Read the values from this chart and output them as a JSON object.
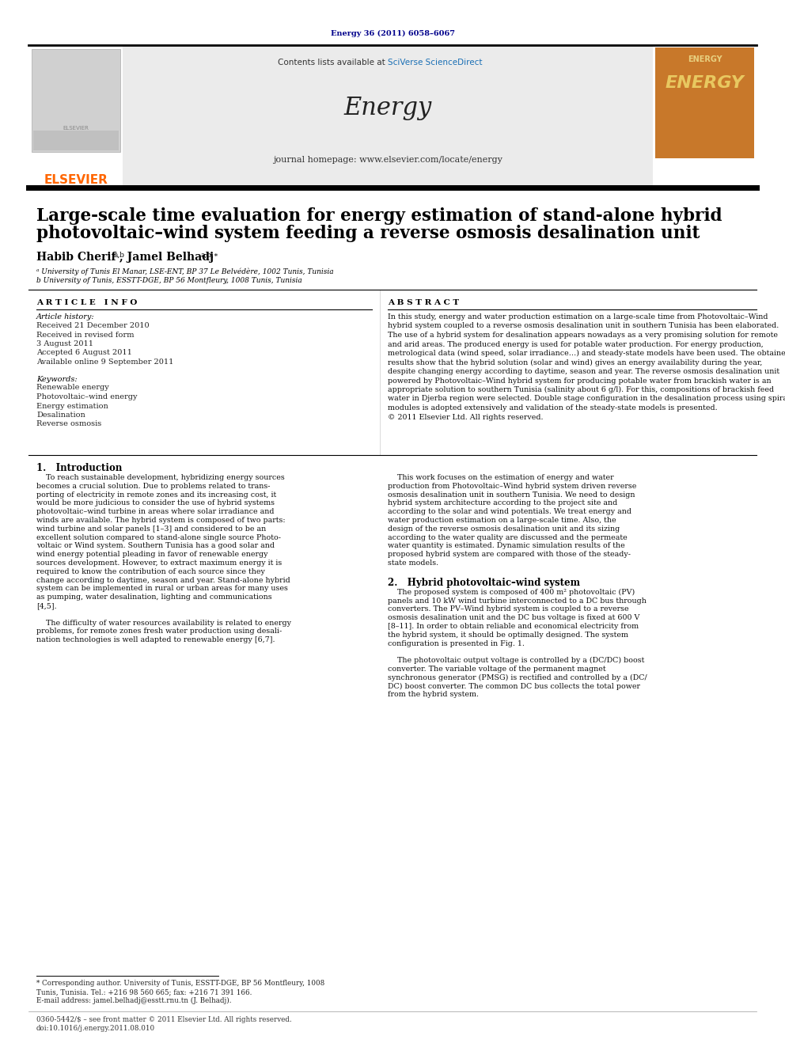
{
  "page_bg": "#ffffff",
  "header_citation": "Energy 36 (2011) 6058–6067",
  "header_citation_color": "#00008B",
  "journal_header_bg": "#e8e8e8",
  "journal_name": "Energy",
  "journal_url": "journal homepage: www.elsevier.com/locate/energy",
  "contents_text": "Contents lists available at ",
  "sciverse_text": "SciVerse ScienceDirect",
  "sciverse_color": "#1a6fb5",
  "elsevier_color": "#FF6600",
  "elsevier_text": "ELSEVIER",
  "article_title_line1": "Large-scale time evaluation for energy estimation of stand-alone hybrid",
  "article_title_line2": "photovoltaic–wind system feeding a reverse osmosis desalination unit",
  "author1": "Habib Cherif",
  "author1_sup": "a,b",
  "author2": ", Jamel Belhadj",
  "author2_sup": "a,b,∗",
  "affil1": "ᵃ University of Tunis El Manar, LSE-ENT, BP 37 Le Belvédère, 1002 Tunis, Tunisia",
  "affil2": "b University of Tunis, ESSTT-DGE, BP 56 Montfleury, 1008 Tunis, Tunisia",
  "article_info_title": "A R T I C L E   I N F O",
  "abstract_title": "A B S T R A C T",
  "article_history_title": "Article history:",
  "received1": "Received 21 December 2010",
  "received2": "Received in revised form",
  "date2": "3 August 2011",
  "accepted": "Accepted 6 August 2011",
  "available": "Available online 9 September 2011",
  "keywords_title": "Keywords:",
  "keywords": [
    "Renewable energy",
    "Photovoltaic–wind energy",
    "Energy estimation",
    "Desalination",
    "Reverse osmosis"
  ],
  "abstract_lines": [
    "In this study, energy and water production estimation on a large-scale time from Photovoltaic–Wind",
    "hybrid system coupled to a reverse osmosis desalination unit in southern Tunisia has been elaborated.",
    "The use of a hybrid system for desalination appears nowadays as a very promising solution for remote",
    "and arid areas. The produced energy is used for potable water production. For energy production,",
    "metrological data (wind speed, solar irradiance…) and steady-state models have been used. The obtained",
    "results show that the hybrid solution (solar and wind) gives an energy availability during the year,",
    "despite changing energy according to daytime, season and year. The reverse osmosis desalination unit",
    "powered by Photovoltaic–Wind hybrid system for producing potable water from brackish water is an",
    "appropriate solution to southern Tunisia (salinity about 6 g/l). For this, compositions of brackish feed",
    "water in Djerba region were selected. Double stage configuration in the desalination process using spiral",
    "modules is adopted extensively and validation of the steady-state models is presented.",
    "© 2011 Elsevier Ltd. All rights reserved."
  ],
  "section1_title": "1.   Introduction",
  "intro_left_lines": [
    "    To reach sustainable development, hybridizing energy sources",
    "becomes a crucial solution. Due to problems related to trans-",
    "porting of electricity in remote zones and its increasing cost, it",
    "would be more judicious to consider the use of hybrid systems",
    "photovoltaic–wind turbine in areas where solar irradiance and",
    "winds are available. The hybrid system is composed of two parts:",
    "wind turbine and solar panels [1–3] and considered to be an",
    "excellent solution compared to stand-alone single source Photo-",
    "voltaic or Wind system. Southern Tunisia has a good solar and",
    "wind energy potential pleading in favor of renewable energy",
    "sources development. However, to extract maximum energy it is",
    "required to know the contribution of each source since they",
    "change according to daytime, season and year. Stand-alone hybrid",
    "system can be implemented in rural or urban areas for many uses",
    "as pumping, water desalination, lighting and communications",
    "[4,5].",
    "",
    "    The difficulty of water resources availability is related to energy",
    "problems, for remote zones fresh water production using desali-",
    "nation technologies is well adapted to renewable energy [6,7]."
  ],
  "intro_right_lines": [
    "    This work focuses on the estimation of energy and water",
    "production from Photovoltaic–Wind hybrid system driven reverse",
    "osmosis desalination unit in southern Tunisia. We need to design",
    "hybrid system architecture according to the project site and",
    "according to the solar and wind potentials. We treat energy and",
    "water production estimation on a large-scale time. Also, the",
    "design of the reverse osmosis desalination unit and its sizing",
    "according to the water quality are discussed and the permeate",
    "water quantity is estimated. Dynamic simulation results of the",
    "proposed hybrid system are compared with those of the steady-",
    "state models."
  ],
  "section2_title": "2.   Hybrid photovoltaic–wind system",
  "section2_lines": [
    "    The proposed system is composed of 400 m² photovoltaic (PV)",
    "panels and 10 kW wind turbine interconnected to a DC bus through",
    "converters. The PV–Wind hybrid system is coupled to a reverse",
    "osmosis desalination unit and the DC bus voltage is fixed at 600 V",
    "[8–11]. In order to obtain reliable and economical electricity from",
    "the hybrid system, it should be optimally designed. The system",
    "configuration is presented in Fig. 1.",
    "",
    "    The photovoltaic output voltage is controlled by a (DC/DC) boost",
    "converter. The variable voltage of the permanent magnet",
    "synchronous generator (PMSG) is rectified and controlled by a (DC/",
    "DC) boost converter. The common DC bus collects the total power",
    "from the hybrid system."
  ],
  "footnote_star": "* Corresponding author. University of Tunis, ESSTT-DGE, BP 56 Montfleury, 1008",
  "footnote_star2": "Tunis, Tunisia. Tel.: +216 98 560 665; fax: +216 71 391 166.",
  "footnote_email": "E-mail address: jamel.belhadj@esstt.rnu.tn (J. Belhadj).",
  "footer_text1": "0360-5442/$ – see front matter © 2011 Elsevier Ltd. All rights reserved.",
  "footer_text2": "doi:10.1016/j.energy.2011.08.010"
}
